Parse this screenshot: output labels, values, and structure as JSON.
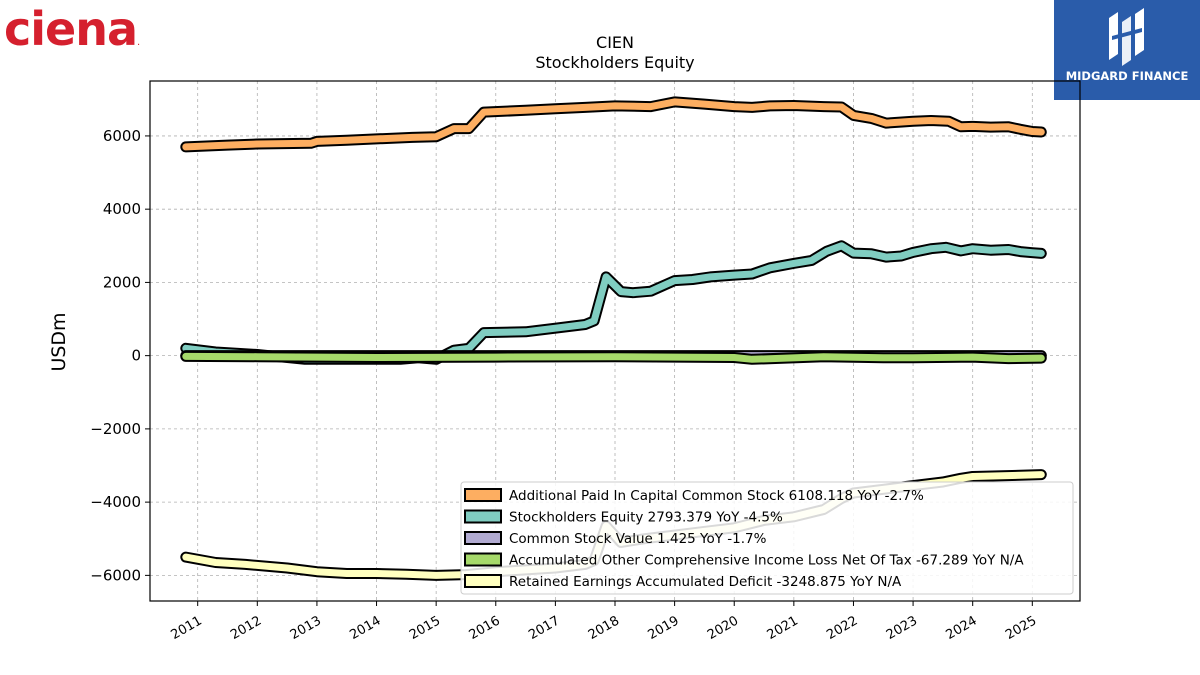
{
  "logos": {
    "left": {
      "text": "ciena",
      "mark": ".",
      "color": "#d5202e"
    },
    "right": {
      "text": "MIDGARD FINANCE",
      "background": "#2a5caa"
    }
  },
  "chart_data": {
    "type": "line",
    "title": "CIEN",
    "subtitle": "Stockholders  Equity",
    "ylabel": "USDm",
    "xlabel": "",
    "xlim": [
      2010.2,
      2025.8
    ],
    "ylim": [
      -6700,
      7500
    ],
    "yticks": [
      -6000,
      -4000,
      -2000,
      0,
      2000,
      4000,
      6000
    ],
    "yticklabels": [
      "−6000",
      "−4000",
      "−2000",
      "0",
      "2000",
      "4000",
      "6000"
    ],
    "xticks": [
      2011,
      2012,
      2013,
      2014,
      2015,
      2016,
      2017,
      2018,
      2019,
      2020,
      2021,
      2022,
      2023,
      2024,
      2025
    ],
    "xticklabels": [
      "2011",
      "2012",
      "2013",
      "2014",
      "2015",
      "2016",
      "2017",
      "2018",
      "2019",
      "2020",
      "2021",
      "2022",
      "2023",
      "2024",
      "2025"
    ],
    "grid": true,
    "legend_position": "lower-right",
    "series": [
      {
        "name": "Additional Paid In Capital Common Stock  6108.118 YoY -2.7%",
        "color": "#fdae61",
        "x": [
          2010.8,
          2011.5,
          2012.0,
          2012.9,
          2013.0,
          2013.5,
          2014.0,
          2014.6,
          2015.0,
          2015.3,
          2015.55,
          2015.8,
          2016.5,
          2017.0,
          2017.5,
          2018.0,
          2018.6,
          2019.0,
          2019.5,
          2020.0,
          2020.3,
          2020.6,
          2021.0,
          2021.5,
          2021.8,
          2022.0,
          2022.3,
          2022.55,
          2023.0,
          2023.3,
          2023.6,
          2023.8,
          2024.0,
          2024.3,
          2024.6,
          2024.8,
          2025.0,
          2025.15
        ],
        "y": [
          5700,
          5750,
          5780,
          5800,
          5850,
          5880,
          5920,
          5960,
          5980,
          6200,
          6200,
          6650,
          6700,
          6740,
          6780,
          6820,
          6800,
          6930,
          6870,
          6800,
          6780,
          6820,
          6830,
          6800,
          6790,
          6560,
          6480,
          6350,
          6400,
          6420,
          6400,
          6250,
          6260,
          6240,
          6250,
          6180,
          6120,
          6108
        ]
      },
      {
        "name": "Stockholders Equity  2793.379 YoY -4.5%",
        "color": "#80cdc1",
        "x": [
          2010.8,
          2011.3,
          2012.0,
          2012.8,
          2013.3,
          2014.0,
          2014.4,
          2014.7,
          2015.0,
          2015.3,
          2015.55,
          2015.8,
          2016.5,
          2017.0,
          2017.5,
          2017.65,
          2017.85,
          2018.1,
          2018.3,
          2018.6,
          2019.0,
          2019.3,
          2019.6,
          2020.0,
          2020.3,
          2020.6,
          2021.0,
          2021.3,
          2021.55,
          2021.8,
          2022.0,
          2022.3,
          2022.55,
          2022.8,
          2023.0,
          2023.3,
          2023.55,
          2023.8,
          2024.0,
          2024.3,
          2024.6,
          2024.8,
          2025.0,
          2025.15
        ],
        "y": [
          200,
          100,
          30,
          -100,
          -100,
          -100,
          -100,
          -60,
          -100,
          150,
          200,
          630,
          650,
          750,
          850,
          950,
          2150,
          1750,
          1720,
          1760,
          2050,
          2080,
          2150,
          2200,
          2230,
          2400,
          2520,
          2600,
          2850,
          3000,
          2800,
          2780,
          2690,
          2720,
          2820,
          2920,
          2960,
          2860,
          2920,
          2880,
          2900,
          2840,
          2810,
          2793
        ]
      },
      {
        "name": "Common Stock Value  1.425 YoY -1.7%",
        "color": "#b2abd2",
        "x": [
          2010.8,
          2025.15
        ],
        "y": [
          1.5,
          1.425
        ]
      },
      {
        "name": "Accumulated Other Comprehensive Income Loss Net Of Tax  -67.289 YoY N/A",
        "color": "#a6d96a",
        "x": [
          2010.8,
          2012.0,
          2014.0,
          2016.0,
          2018.0,
          2020.0,
          2020.3,
          2021.5,
          2022.5,
          2023.0,
          2024.0,
          2024.6,
          2025.15
        ],
        "y": [
          -20,
          -30,
          -50,
          -40,
          -30,
          -50,
          -100,
          -30,
          -60,
          -60,
          -40,
          -80,
          -67
        ]
      },
      {
        "name": "Retained Earnings Accumulated Deficit  -3248.875 YoY N/A",
        "color": "#ffffbf",
        "x": [
          2010.8,
          2011.3,
          2011.8,
          2012.5,
          2013.0,
          2013.5,
          2014.0,
          2014.5,
          2015.0,
          2015.5,
          2016.0,
          2016.5,
          2017.0,
          2017.5,
          2017.65,
          2017.85,
          2018.1,
          2018.5,
          2019.0,
          2019.5,
          2020.0,
          2020.5,
          2021.0,
          2021.5,
          2021.8,
          2022.0,
          2022.5,
          2023.0,
          2023.5,
          2023.8,
          2024.0,
          2024.5,
          2025.15
        ],
        "y": [
          -5500,
          -5650,
          -5700,
          -5800,
          -5900,
          -5950,
          -5950,
          -5970,
          -6000,
          -5980,
          -5900,
          -5850,
          -5800,
          -5700,
          -5600,
          -4650,
          -5100,
          -5000,
          -4900,
          -4800,
          -4700,
          -4500,
          -4400,
          -4200,
          -3900,
          -3750,
          -3650,
          -3550,
          -3450,
          -3350,
          -3300,
          -3280,
          -3249
        ]
      }
    ]
  }
}
